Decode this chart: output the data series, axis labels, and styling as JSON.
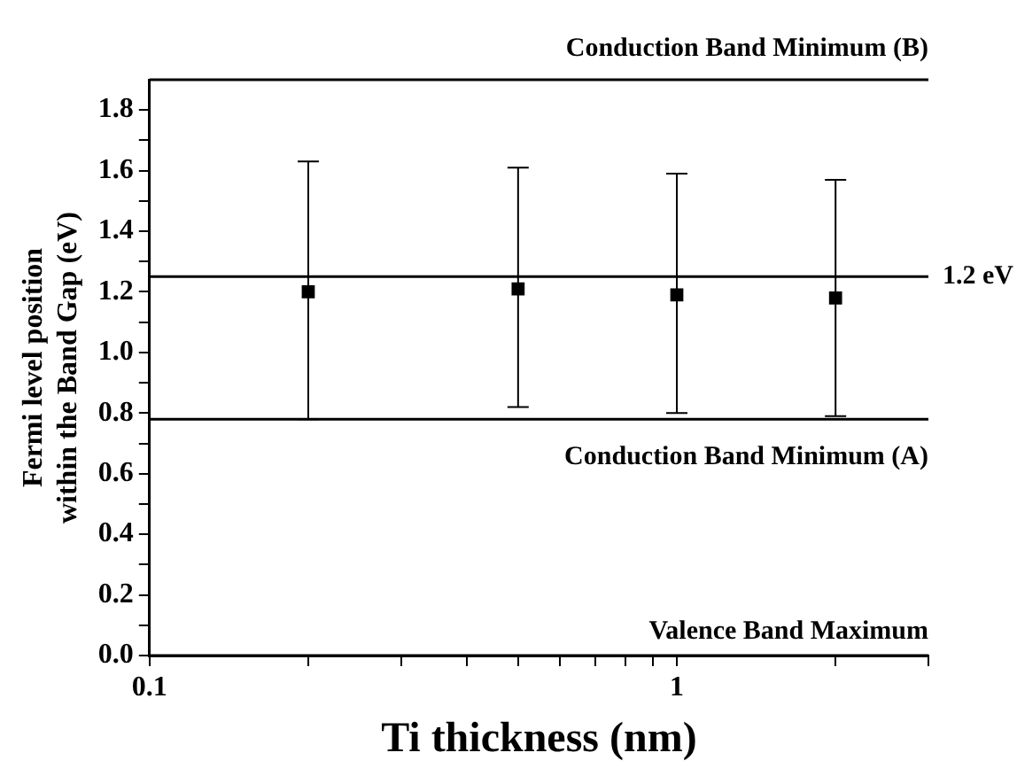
{
  "chart_data": {
    "type": "scatter",
    "xlabel": "Ti thickness (nm)",
    "ylabel": "Fermi level position\nwithin the Band Gap (eV)",
    "log": "x",
    "grid": false,
    "legend": false,
    "marker": "square",
    "x": [
      0.2,
      0.5,
      1,
      2
    ],
    "series": [
      {
        "color": "#000000",
        "values": [
          1.2,
          1.21,
          1.19,
          1.18
        ],
        "errors": [
          [
            0.78,
            1.63
          ],
          [
            0.82,
            1.61
          ],
          [
            0.8,
            1.59
          ],
          [
            0.79,
            1.57
          ]
        ]
      }
    ],
    "xlim": [
      0.1,
      3
    ],
    "xticks": [
      0.1,
      {
        "value": 0.2,
        "label": null
      },
      {
        "value": 0.3,
        "label": null
      },
      {
        "value": 0.4,
        "label": null
      },
      {
        "value": 0.5,
        "label": null
      },
      {
        "value": 0.6,
        "label": null
      },
      {
        "value": 0.7,
        "label": null
      },
      {
        "value": 0.8,
        "label": null
      },
      {
        "value": 0.9,
        "label": null
      },
      1,
      {
        "value": 2,
        "label": null
      },
      {
        "value": 3,
        "label": null
      }
    ],
    "ylim": [
      0,
      1.9
    ],
    "yticks": [
      {
        "value": 0,
        "label": "0.0"
      },
      {
        "value": 0.1,
        "label": null
      },
      {
        "value": 0.2,
        "label": "0.2"
      },
      {
        "value": 0.3,
        "label": null
      },
      {
        "value": 0.4,
        "label": "0.4"
      },
      {
        "value": 0.5,
        "label": null
      },
      {
        "value": 0.6,
        "label": "0.6"
      },
      {
        "value": 0.7,
        "label": null
      },
      {
        "value": 0.8,
        "label": "0.8"
      },
      {
        "value": 0.9,
        "label": null
      },
      {
        "value": 1,
        "label": "1.0"
      },
      {
        "value": 1.1,
        "label": null
      },
      {
        "value": 1.2,
        "label": "1.2"
      },
      {
        "value": 1.3,
        "label": null
      },
      {
        "value": 1.4,
        "label": "1.4"
      },
      {
        "value": 1.5,
        "label": null
      },
      {
        "value": 1.6,
        "label": "1.6"
      },
      {
        "value": 1.7,
        "label": null
      },
      {
        "value": 1.8,
        "label": "1.8"
      }
    ],
    "ref_lines": [
      {
        "axis": "y",
        "value": 1.9,
        "label": "Conduction Band Minimum (B)",
        "color": "#000000"
      },
      {
        "axis": "y",
        "value": 1.25,
        "label": "1.2 eV",
        "color": "#000000"
      },
      {
        "axis": "y",
        "value": 0.78,
        "label": "Conduction Band Minimum (A)",
        "color": "#000000"
      },
      {
        "axis": "y",
        "value": 0,
        "label": "Valence Band Maximum",
        "color": "#000000"
      }
    ]
  }
}
